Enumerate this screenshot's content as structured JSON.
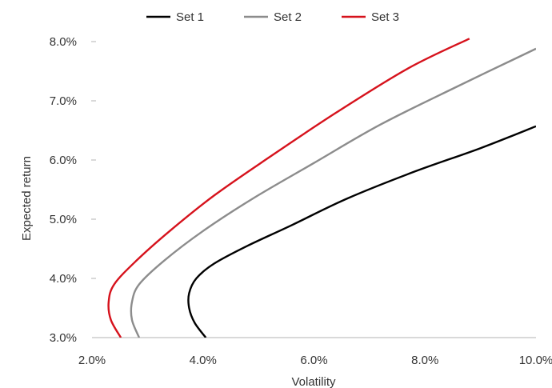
{
  "chart_data": {
    "type": "line",
    "title": "",
    "xlabel": "Volatility",
    "ylabel": "Expected return",
    "xlim": [
      2.0,
      10.0
    ],
    "ylim": [
      3.0,
      8.0
    ],
    "x_ticks": [
      "2.0%",
      "4.0%",
      "6.0%",
      "8.0%",
      "10.0%"
    ],
    "y_ticks": [
      "3.0%",
      "4.0%",
      "5.0%",
      "6.0%",
      "7.0%",
      "8.0%"
    ],
    "grid": false,
    "legend_position": "top-center",
    "series": [
      {
        "name": "Set 1",
        "color": "#000000",
        "points": [
          {
            "x": 4.05,
            "y": 3.0
          },
          {
            "x": 3.85,
            "y": 3.25
          },
          {
            "x": 3.75,
            "y": 3.5
          },
          {
            "x": 3.75,
            "y": 3.75
          },
          {
            "x": 3.88,
            "y": 4.0
          },
          {
            "x": 4.2,
            "y": 4.25
          },
          {
            "x": 4.8,
            "y": 4.55
          },
          {
            "x": 5.6,
            "y": 4.9
          },
          {
            "x": 6.6,
            "y": 5.35
          },
          {
            "x": 7.8,
            "y": 5.8
          },
          {
            "x": 9.0,
            "y": 6.2
          },
          {
            "x": 10.0,
            "y": 6.57
          }
        ]
      },
      {
        "name": "Set 2",
        "color": "#8c8c8c",
        "points": [
          {
            "x": 2.85,
            "y": 3.0
          },
          {
            "x": 2.72,
            "y": 3.3
          },
          {
            "x": 2.72,
            "y": 3.6
          },
          {
            "x": 2.85,
            "y": 3.9
          },
          {
            "x": 3.3,
            "y": 4.3
          },
          {
            "x": 4.0,
            "y": 4.8
          },
          {
            "x": 4.9,
            "y": 5.35
          },
          {
            "x": 6.0,
            "y": 5.95
          },
          {
            "x": 7.2,
            "y": 6.6
          },
          {
            "x": 8.6,
            "y": 7.25
          },
          {
            "x": 10.0,
            "y": 7.88
          }
        ]
      },
      {
        "name": "Set 3",
        "color": "#d6121c",
        "points": [
          {
            "x": 2.52,
            "y": 3.0
          },
          {
            "x": 2.34,
            "y": 3.3
          },
          {
            "x": 2.3,
            "y": 3.6
          },
          {
            "x": 2.4,
            "y": 3.9
          },
          {
            "x": 2.8,
            "y": 4.3
          },
          {
            "x": 3.4,
            "y": 4.8
          },
          {
            "x": 4.2,
            "y": 5.4
          },
          {
            "x": 5.2,
            "y": 6.05
          },
          {
            "x": 6.4,
            "y": 6.8
          },
          {
            "x": 7.7,
            "y": 7.55
          },
          {
            "x": 8.8,
            "y": 8.05
          }
        ]
      }
    ]
  }
}
